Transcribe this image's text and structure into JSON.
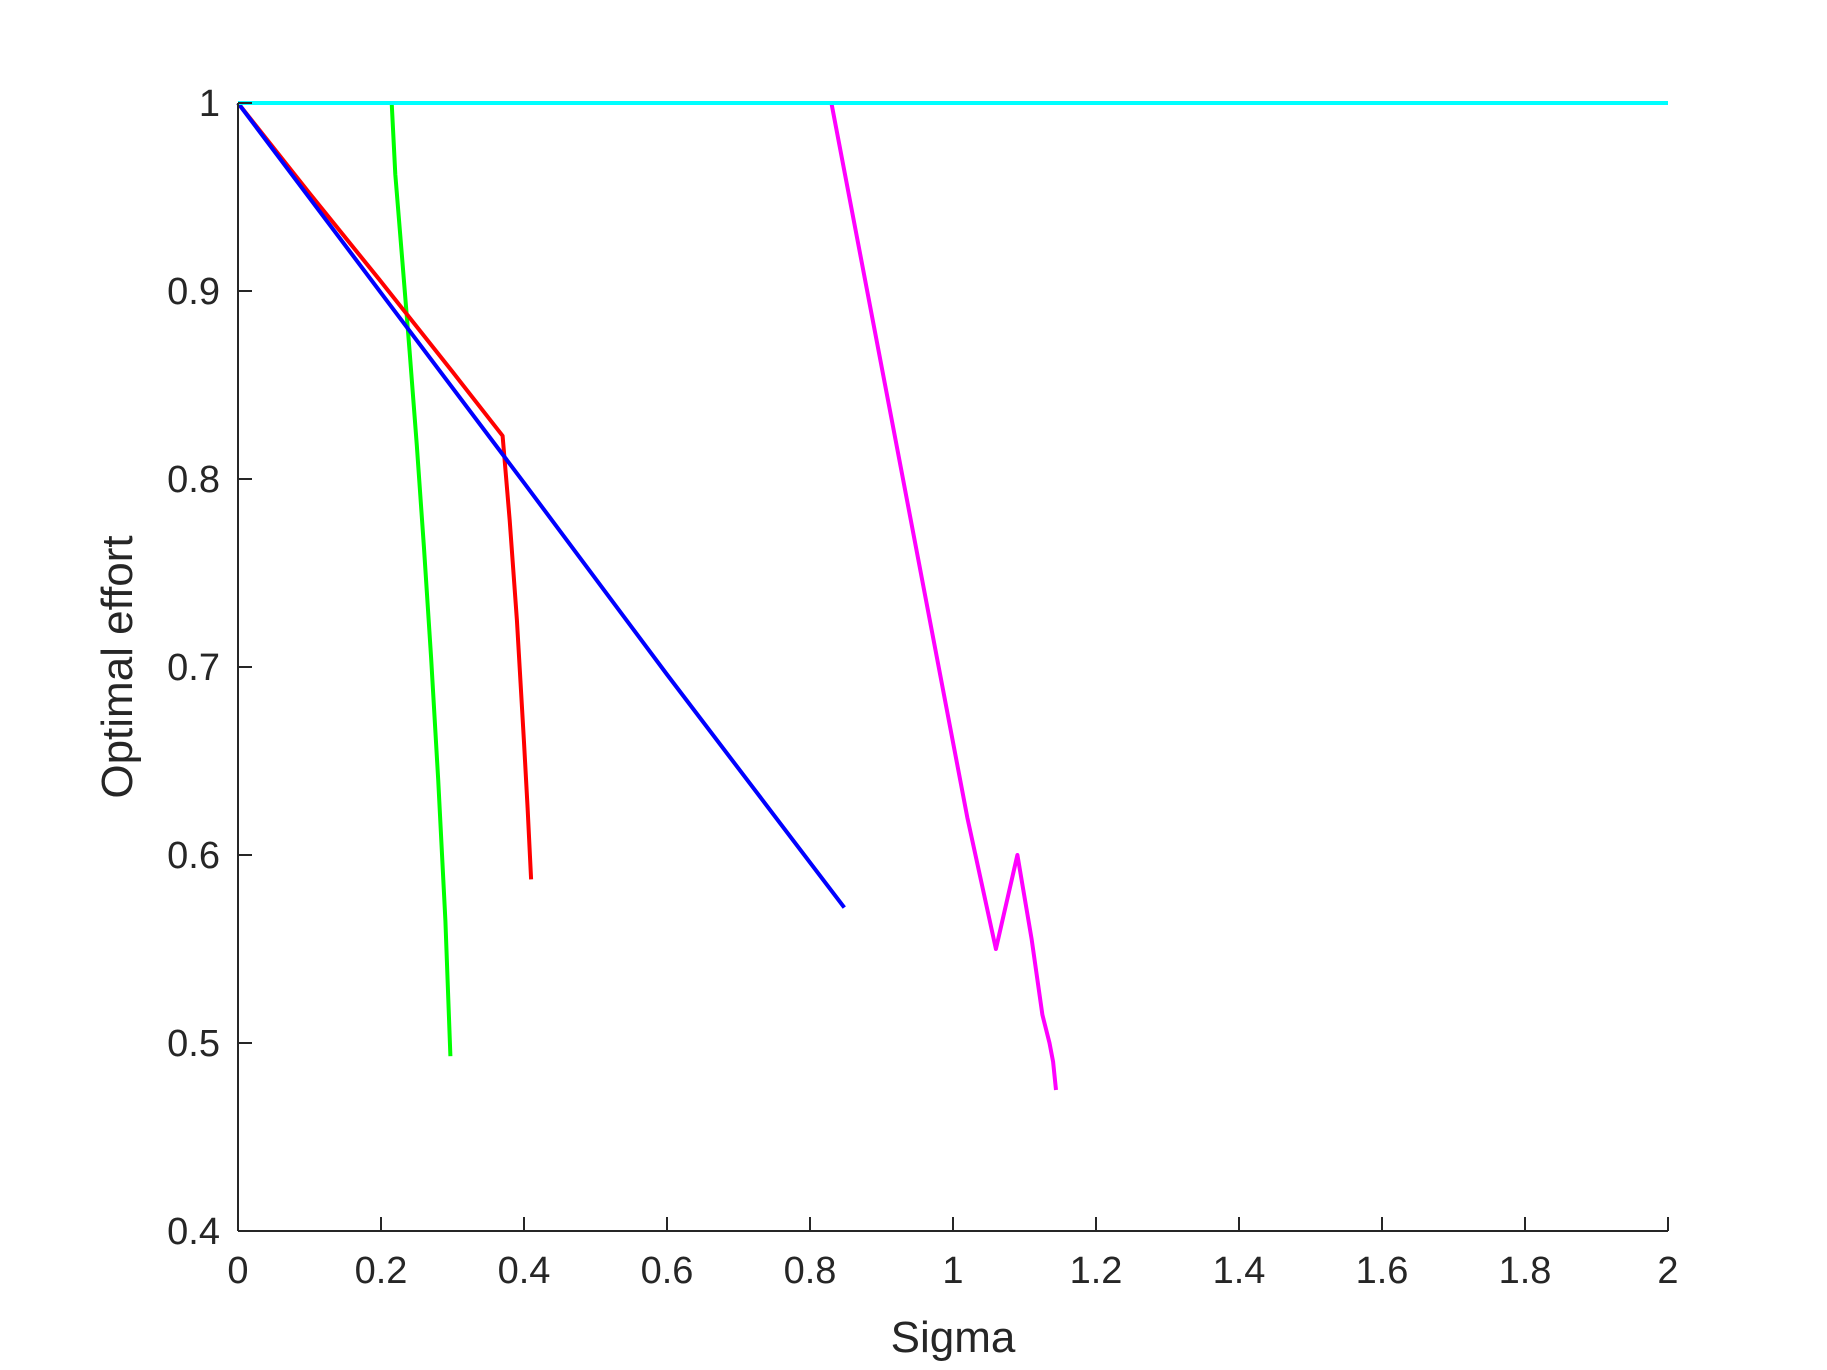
{
  "chart_data": {
    "type": "line",
    "title": "",
    "xlabel": "Sigma",
    "ylabel": "Optimal effort",
    "xlim": [
      0,
      2
    ],
    "ylim": [
      0.4,
      1
    ],
    "x_ticks": [
      0,
      0.2,
      0.4,
      0.6,
      0.8,
      1,
      1.2,
      1.4,
      1.6,
      1.8,
      2
    ],
    "x_tick_labels": [
      "0",
      "0.2",
      "0.4",
      "0.6",
      "0.8",
      "1",
      "1.2",
      "1.4",
      "1.6",
      "1.8",
      "2"
    ],
    "y_ticks": [
      0.4,
      0.5,
      0.6,
      0.7,
      0.8,
      0.9,
      1
    ],
    "y_tick_labels": [
      "0.4",
      "0.5",
      "0.6",
      "0.7",
      "0.8",
      "0.9",
      "1"
    ],
    "grid": false,
    "legend": "none",
    "series": [
      {
        "color": "#00ff00",
        "x": [
          0.215,
          0.22,
          0.23,
          0.24,
          0.25,
          0.26,
          0.27,
          0.28,
          0.29,
          0.297
        ],
        "y": [
          1.0,
          0.962,
          0.915,
          0.868,
          0.818,
          0.764,
          0.705,
          0.64,
          0.565,
          0.493
        ]
      },
      {
        "color": "#ff0000",
        "x": [
          0,
          0.1,
          0.2,
          0.3,
          0.37,
          0.38,
          0.39,
          0.4,
          0.405,
          0.41
        ],
        "y": [
          1.0,
          0.952,
          0.905,
          0.857,
          0.823,
          0.778,
          0.725,
          0.66,
          0.625,
          0.587
        ]
      },
      {
        "color": "#0000ff",
        "x": [
          0,
          0.2,
          0.4,
          0.6,
          0.848
        ],
        "y": [
          1.0,
          0.899,
          0.798,
          0.696,
          0.572
        ]
      },
      {
        "color": "#ff00ff",
        "x": [
          0.83,
          0.88,
          0.93,
          0.98,
          1.02,
          1.06,
          1.09,
          1.11,
          1.125,
          1.135,
          1.14,
          1.144
        ],
        "y": [
          1.0,
          0.9,
          0.8,
          0.7,
          0.62,
          0.55,
          0.6,
          0.555,
          0.515,
          0.5,
          0.49,
          0.475
        ]
      },
      {
        "color": "#00ffff",
        "x": [
          0,
          2
        ],
        "y": [
          1.0,
          1.0
        ]
      }
    ]
  }
}
